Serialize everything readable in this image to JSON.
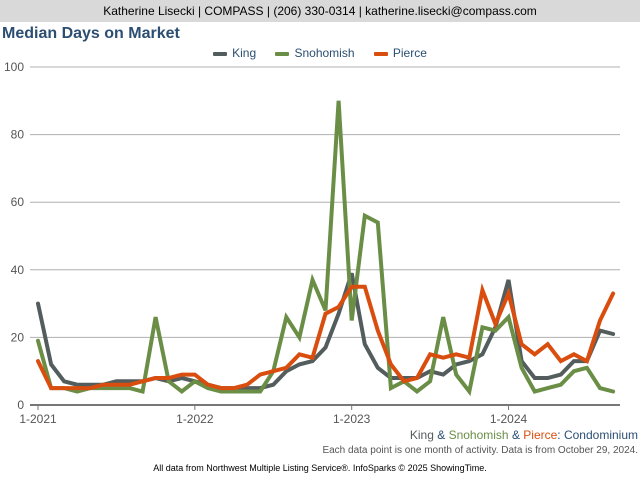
{
  "header": {
    "contact": "Katherine Lisecki | COMPASS | (206) 330-0314 | katherine.lisecki@compass.com"
  },
  "chart_data": {
    "type": "line",
    "title": "Median Days on Market",
    "xlabel": "",
    "ylabel": "",
    "ylim": [
      0,
      100
    ],
    "yticks": [
      0,
      20,
      40,
      60,
      80,
      100
    ],
    "xticks": [
      {
        "label": "1-2021",
        "index": 0
      },
      {
        "label": "1-2022",
        "index": 12
      },
      {
        "label": "1-2023",
        "index": 24
      },
      {
        "label": "1-2024",
        "index": 36
      }
    ],
    "x_start": "1-2021",
    "x_end": "9-2024",
    "grid": true,
    "legend": "top-center",
    "series": [
      {
        "name": "King",
        "color": "#545d5d",
        "values": [
          30,
          12,
          7,
          6,
          6,
          6,
          7,
          7,
          7,
          8,
          7,
          8,
          7,
          6,
          5,
          5,
          5,
          5,
          6,
          10,
          12,
          13,
          17,
          27,
          39,
          18,
          11,
          8,
          8,
          8,
          10,
          9,
          12,
          13,
          15,
          23,
          37,
          13,
          8,
          8,
          9,
          13,
          13,
          22,
          21
        ]
      },
      {
        "name": "Snohomish",
        "color": "#6b8e47",
        "values": [
          19,
          5,
          5,
          4,
          5,
          5,
          5,
          5,
          4,
          26,
          7,
          4,
          7,
          5,
          4,
          4,
          4,
          4,
          10,
          26,
          20,
          37,
          28,
          90,
          25,
          56,
          54,
          5,
          7,
          4,
          7,
          26,
          9,
          4,
          23,
          22,
          26,
          11,
          4,
          5,
          6,
          10,
          11,
          5,
          4
        ]
      },
      {
        "name": "Pierce",
        "color": "#d94e0f",
        "values": [
          13,
          5,
          5,
          5,
          5,
          6,
          6,
          6,
          7,
          8,
          8,
          9,
          9,
          6,
          5,
          5,
          6,
          9,
          10,
          11,
          15,
          14,
          27,
          29,
          35,
          35,
          22,
          12,
          7,
          8,
          15,
          14,
          15,
          14,
          34,
          24,
          33,
          18,
          15,
          18,
          13,
          15,
          13,
          25,
          33
        ]
      }
    ]
  },
  "subtitle": {
    "king": "King",
    "amp1": " & ",
    "snohomish": "Snohomish",
    "amp2": " & ",
    "pierce": "Pierce",
    "rest": ": Condominium"
  },
  "note": "Each data point is one month of activity. Data is from October 29, 2024.",
  "footer": "All data from Northwest Multiple Listing Service®. InfoSparks © 2025 ShowingTime."
}
